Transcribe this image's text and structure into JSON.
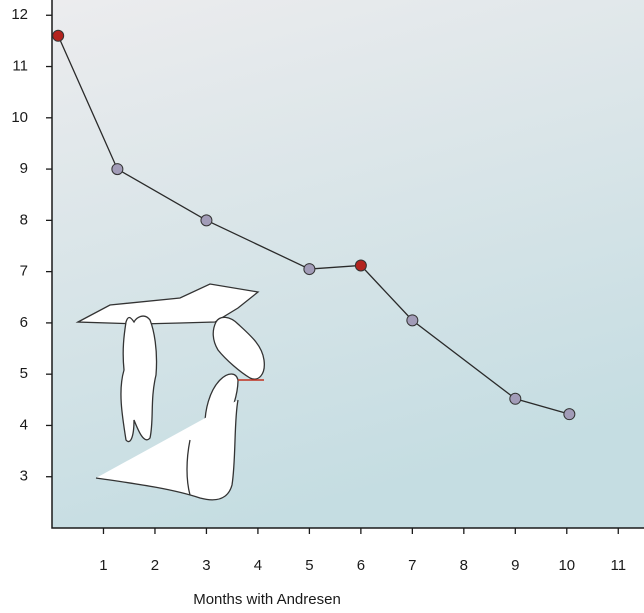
{
  "chart_data": {
    "type": "line",
    "x_label": "Months with Andresen",
    "x": [
      0.12,
      1.27,
      3,
      5,
      6,
      7,
      9,
      10.05
    ],
    "series": [
      {
        "values": [
          11.6,
          9.0,
          8.0,
          7.05,
          7.12,
          6.05,
          4.52,
          4.22
        ],
        "color": "#2a2a2a",
        "marker_colors": [
          "#b3231e",
          "#a29cb8",
          "#a29cb8",
          "#a29cb8",
          "#b3231e",
          "#a29cb8",
          "#a29cb8",
          "#a29cb8"
        ]
      }
    ],
    "xlim": [
      0,
      11.5
    ],
    "ylim": [
      2,
      12.2
    ],
    "xticks": [
      1,
      2,
      3,
      4,
      5,
      6,
      7,
      8,
      9,
      10,
      11
    ],
    "yticks": [
      3,
      4,
      5,
      6,
      7,
      8,
      9,
      10,
      11,
      12
    ]
  }
}
